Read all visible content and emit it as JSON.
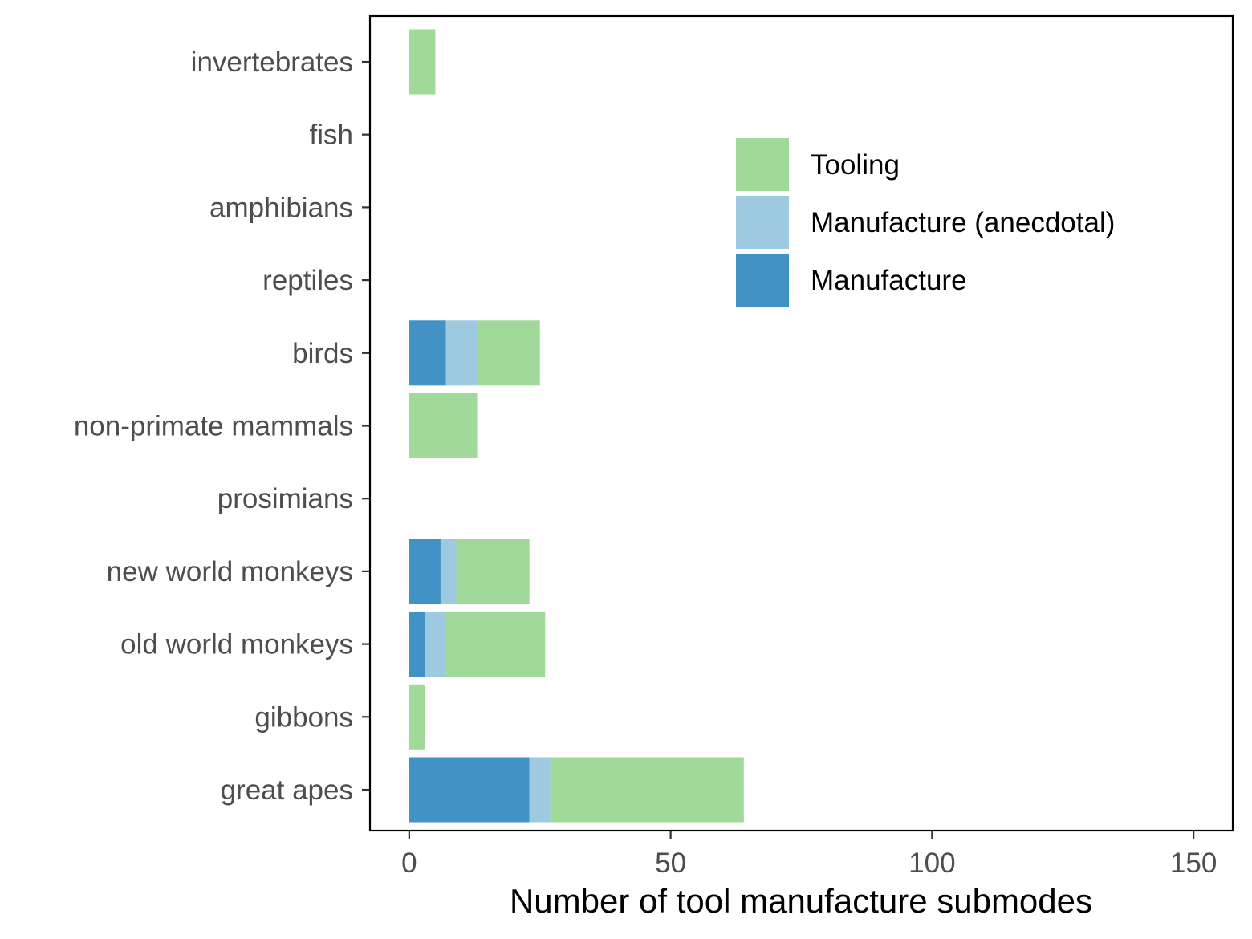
{
  "chart_data": {
    "type": "bar",
    "orientation": "horizontal",
    "stacked": true,
    "categories": [
      "invertebrates",
      "fish",
      "amphibians",
      "reptiles",
      "birds",
      "non-primate mammals",
      "prosimians",
      "new world monkeys",
      "old world monkeys",
      "gibbons",
      "great apes"
    ],
    "series": [
      {
        "name": "Manufacture",
        "color": "#4292c6",
        "values": [
          0,
          0,
          0,
          0,
          7,
          0,
          0,
          6,
          3,
          0,
          23
        ]
      },
      {
        "name": "Manufacture (anecdotal)",
        "color": "#9ecae1",
        "values": [
          0,
          0,
          0,
          0,
          6,
          0,
          0,
          3,
          4,
          0,
          4
        ]
      },
      {
        "name": "Tooling",
        "color": "#a1d99b",
        "values": [
          5,
          0,
          0,
          0,
          12,
          13,
          0,
          14,
          19,
          3,
          37
        ]
      }
    ],
    "legend_order": [
      "Tooling",
      "Manufacture (anecdotal)",
      "Manufacture"
    ],
    "legend_position": "top-right",
    "xlabel": "Number of tool manufacture submodes",
    "ylabel": "",
    "xlim": [
      -7.5,
      157.5
    ],
    "xticks": [
      0,
      50,
      100,
      150
    ],
    "xtick_labels": [
      "0",
      "50",
      "100",
      "150"
    ],
    "grid": false
  }
}
